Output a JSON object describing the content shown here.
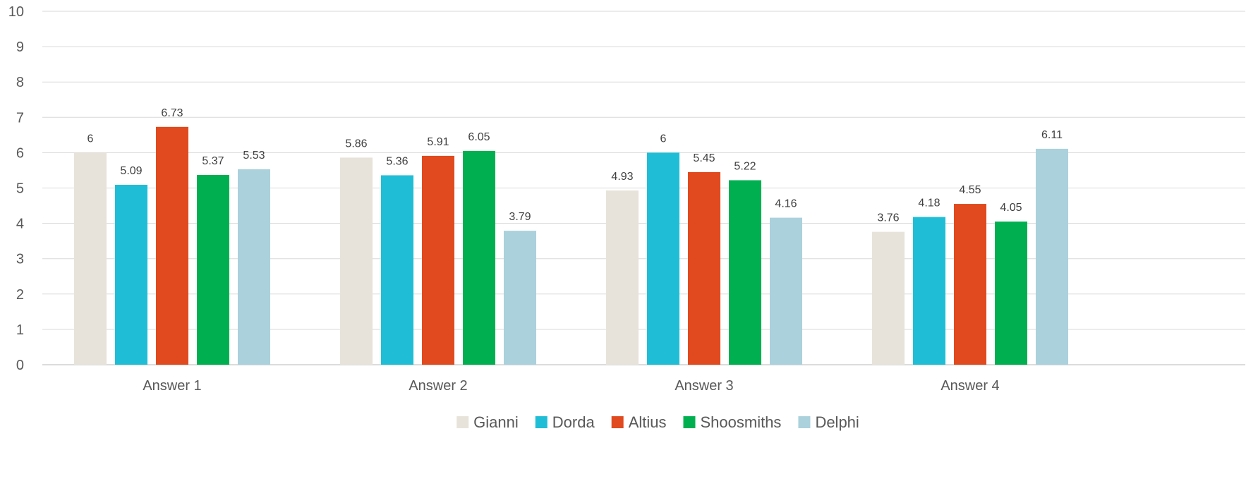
{
  "chart_data": {
    "type": "bar",
    "title": "",
    "xlabel": "",
    "ylabel": "",
    "ylim": [
      0,
      10
    ],
    "yticks": [
      "0",
      "1",
      "2",
      "3",
      "4",
      "5",
      "6",
      "7",
      "8",
      "9",
      "10"
    ],
    "grid": true,
    "legend_position": "bottom",
    "categories": [
      "Answer 1",
      "Answer 2",
      "Answer 3",
      "Answer 4"
    ],
    "series": [
      {
        "name": "Gianni",
        "color": "#e7e3db",
        "values": [
          6,
          5.86,
          4.93,
          3.76
        ],
        "labels": [
          "6",
          "5.86",
          "4.93",
          "3.76"
        ]
      },
      {
        "name": "Dorda",
        "color": "#1fbed6",
        "values": [
          5.09,
          5.36,
          6,
          4.18
        ],
        "labels": [
          "5.09",
          "5.36",
          "6",
          "4.18"
        ]
      },
      {
        "name": "Altius",
        "color": "#e04a1e",
        "values": [
          6.73,
          5.91,
          5.45,
          4.55
        ],
        "labels": [
          "6.73",
          "5.91",
          "5.45",
          "4.55"
        ]
      },
      {
        "name": "Shoosmiths",
        "color": "#00b050",
        "values": [
          5.37,
          6.05,
          5.22,
          4.05
        ],
        "labels": [
          "5.37",
          "6.05",
          "5.22",
          "4.05"
        ]
      },
      {
        "name": "Delphi",
        "color": "#abd1dc",
        "values": [
          5.53,
          3.79,
          4.16,
          6.11
        ],
        "labels": [
          "5.53",
          "3.79",
          "4.16",
          "6.11"
        ]
      }
    ]
  }
}
